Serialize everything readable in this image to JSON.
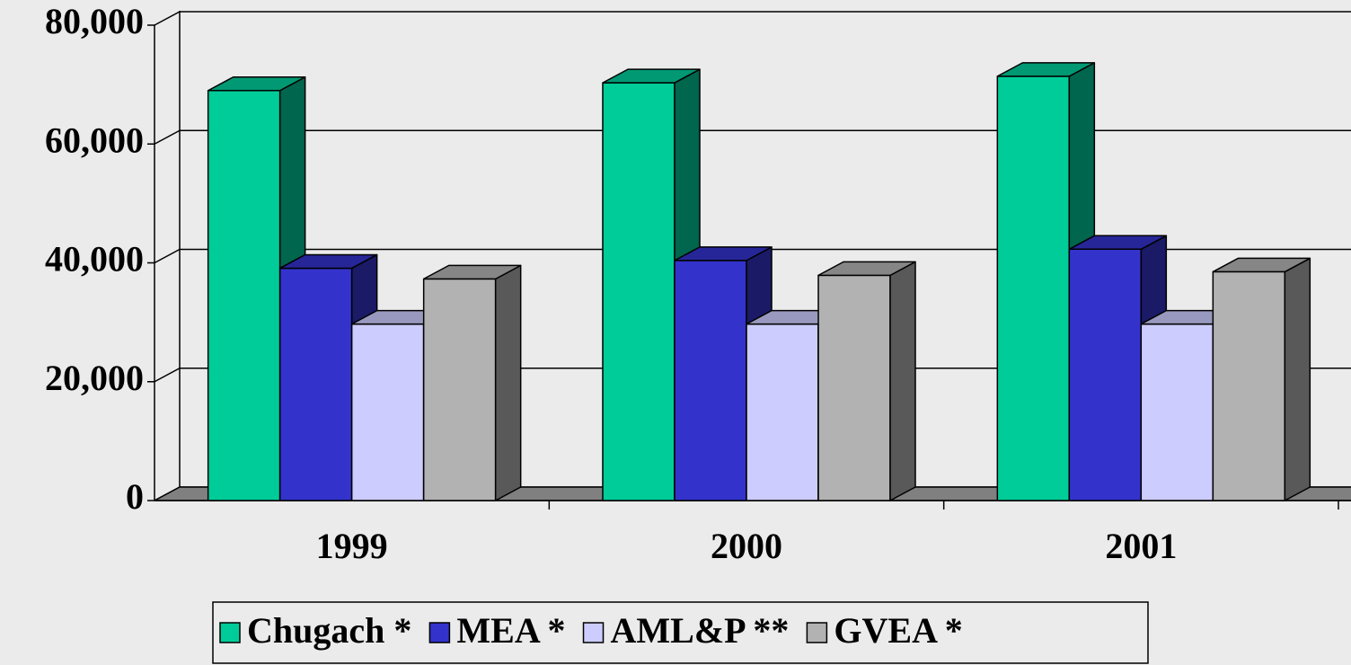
{
  "chart_data": {
    "type": "bar3d",
    "categories": [
      "1999",
      "2000",
      "2001"
    ],
    "series": [
      {
        "name": "Chugach *",
        "color": "#00cc99",
        "values": [
          69000,
          70300,
          71400
        ]
      },
      {
        "name": "MEA *",
        "color": "#3333cc",
        "values": [
          39100,
          40400,
          42300
        ]
      },
      {
        "name": "AML&P **",
        "color": "#ccccff",
        "values": [
          29700,
          29700,
          29700
        ]
      },
      {
        "name": "GVEA *",
        "color": "#b2b2b2",
        "values": [
          37300,
          37900,
          38500
        ]
      }
    ],
    "ylim": [
      0,
      80000
    ],
    "yticks": [
      0,
      {
        "value": 20000,
        "label": "20,000"
      },
      {
        "value": 40000,
        "label": "40,000"
      },
      {
        "value": 60000,
        "label": "60,000"
      },
      {
        "value": 80000,
        "label": "80,000"
      }
    ],
    "grid": true,
    "legend": "bottom"
  }
}
